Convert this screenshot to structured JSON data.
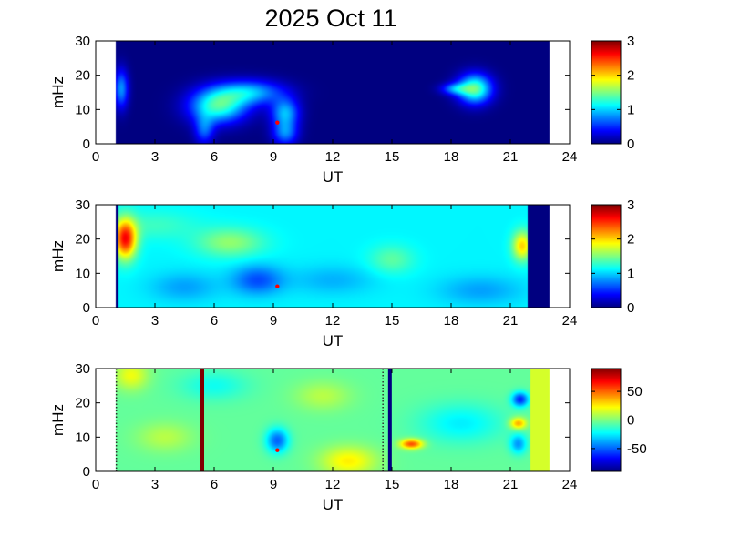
{
  "title": "2025 Oct 11",
  "chart_data": [
    {
      "type": "heatmap",
      "xlabel": "UT",
      "ylabel": "mHz",
      "xlim": [
        0,
        24
      ],
      "ylim": [
        0,
        30
      ],
      "xticks": [
        "0",
        "3",
        "6",
        "9",
        "12",
        "15",
        "18",
        "21",
        "24"
      ],
      "yticks": [
        "0",
        "10",
        "20",
        "30"
      ],
      "data_extent_x": [
        1,
        23
      ],
      "colorbar": {
        "min": 0,
        "max": 3,
        "ticks": [
          "0",
          "1",
          "2",
          "3"
        ]
      },
      "background_value": 0,
      "blobs": [
        {
          "x": 1.3,
          "y": 16,
          "sx": 0.25,
          "sy": 4,
          "v": 0.8
        },
        {
          "x": 6.2,
          "y": 11,
          "sx": 1.0,
          "sy": 3.5,
          "v": 1.3
        },
        {
          "x": 7.8,
          "y": 15,
          "sx": 1.2,
          "sy": 2.5,
          "v": 0.9
        },
        {
          "x": 5.5,
          "y": 4,
          "sx": 0.35,
          "sy": 3,
          "v": 0.6
        },
        {
          "x": 9.6,
          "y": 9,
          "sx": 0.5,
          "sy": 3,
          "v": 0.9
        },
        {
          "x": 9.6,
          "y": 3,
          "sx": 0.45,
          "sy": 2.5,
          "v": 0.7
        },
        {
          "x": 19.2,
          "y": 16,
          "sx": 0.6,
          "sy": 3,
          "v": 1.4
        },
        {
          "x": 18.2,
          "y": 16,
          "sx": 0.5,
          "sy": 1.2,
          "v": 0.7
        }
      ],
      "marker": {
        "x": 9.2,
        "y": 6.2
      }
    },
    {
      "type": "heatmap",
      "xlabel": "UT",
      "ylabel": "mHz",
      "xlim": [
        0,
        24
      ],
      "ylim": [
        0,
        30
      ],
      "xticks": [
        "0",
        "3",
        "6",
        "9",
        "12",
        "15",
        "18",
        "21",
        "24"
      ],
      "yticks": [
        "0",
        "10",
        "20",
        "30"
      ],
      "data_extent_x": [
        1,
        23
      ],
      "colorbar": {
        "min": 0,
        "max": 3,
        "ticks": [
          "0",
          "1",
          "2",
          "3"
        ]
      },
      "background_value": 1.1,
      "dark_bands": [
        [
          1.0,
          1.15
        ],
        [
          21.9,
          23.0
        ]
      ],
      "blobs": [
        {
          "x": 1.5,
          "y": 20,
          "sx": 0.4,
          "sy": 4,
          "v": 1.5
        },
        {
          "x": 6.8,
          "y": 19,
          "sx": 1.2,
          "sy": 3,
          "v": 0.45
        },
        {
          "x": 8.2,
          "y": 8,
          "sx": 0.9,
          "sy": 3,
          "v": -0.5
        },
        {
          "x": 4.5,
          "y": 6,
          "sx": 1.2,
          "sy": 3,
          "v": -0.25
        },
        {
          "x": 12.0,
          "y": 8,
          "sx": 1.5,
          "sy": 3,
          "v": -0.2
        },
        {
          "x": 15.0,
          "y": 14,
          "sx": 0.8,
          "sy": 3,
          "v": 0.3
        },
        {
          "x": 19.5,
          "y": 5,
          "sx": 1.5,
          "sy": 3,
          "v": -0.25
        },
        {
          "x": 21.6,
          "y": 18,
          "sx": 0.35,
          "sy": 3,
          "v": 0.9
        },
        {
          "x": 3.0,
          "y": 24,
          "sx": 1.5,
          "sy": 3,
          "v": 0.2
        }
      ],
      "marker": {
        "x": 9.2,
        "y": 6.2
      }
    },
    {
      "type": "heatmap",
      "xlabel": "UT",
      "ylabel": "mHz",
      "xlim": [
        0,
        24
      ],
      "ylim": [
        0,
        30
      ],
      "xticks": [
        "0",
        "3",
        "6",
        "9",
        "12",
        "15",
        "18",
        "21",
        "24"
      ],
      "yticks": [
        "0",
        "10",
        "20",
        "30"
      ],
      "data_extent_x": [
        1,
        23
      ],
      "colorbar": {
        "min": -90,
        "max": 90,
        "ticks": [
          "-50",
          "0",
          "50"
        ],
        "tick_values": [
          -50,
          0,
          50
        ]
      },
      "background_value": -5,
      "vertical_lines": [
        {
          "x": 5.4,
          "value": 90
        },
        {
          "x": 14.9,
          "value": -90
        }
      ],
      "dotted_lines": [
        1.0,
        14.5
      ],
      "right_band": {
        "from": 22.0,
        "to": 23.0,
        "value": 15
      },
      "blobs": [
        {
          "x": 12.8,
          "y": 3,
          "sx": 1.0,
          "sy": 3,
          "v": 30
        },
        {
          "x": 1.8,
          "y": 28,
          "sx": 0.6,
          "sy": 3,
          "v": 25
        },
        {
          "x": 16.0,
          "y": 8,
          "sx": 0.4,
          "sy": 1,
          "v": 60
        },
        {
          "x": 9.2,
          "y": 9,
          "sx": 0.4,
          "sy": 2.5,
          "v": -45
        },
        {
          "x": 21.5,
          "y": 21,
          "sx": 0.3,
          "sy": 1.5,
          "v": -55
        },
        {
          "x": 21.4,
          "y": 14,
          "sx": 0.3,
          "sy": 1.2,
          "v": 45
        },
        {
          "x": 21.4,
          "y": 8,
          "sx": 0.3,
          "sy": 2,
          "v": -35
        },
        {
          "x": 6.0,
          "y": 25,
          "sx": 1.2,
          "sy": 3,
          "v": -15
        },
        {
          "x": 18.5,
          "y": 14,
          "sx": 1.5,
          "sy": 4,
          "v": -20
        },
        {
          "x": 11.5,
          "y": 22,
          "sx": 1.0,
          "sy": 3,
          "v": 15
        },
        {
          "x": 3.5,
          "y": 10,
          "sx": 1.0,
          "sy": 3,
          "v": 15
        }
      ],
      "marker": {
        "x": 9.2,
        "y": 6.2
      }
    }
  ]
}
